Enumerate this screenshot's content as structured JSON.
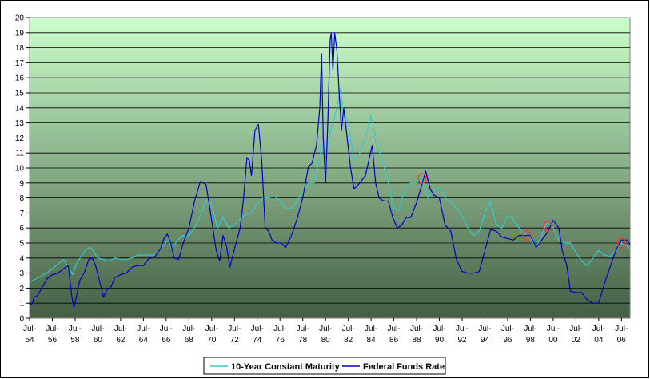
{
  "chart_data": {
    "type": "line",
    "title": "",
    "xlabel": "",
    "ylabel": "",
    "ylim": [
      0,
      20
    ],
    "yticks": [
      0,
      1,
      2,
      3,
      4,
      5,
      6,
      7,
      8,
      9,
      10,
      11,
      12,
      13,
      14,
      15,
      16,
      17,
      18,
      19,
      20
    ],
    "xlim": [
      1954.5,
      2007.25
    ],
    "xtick_top": [
      "Jul-",
      "Jul-",
      "Jul-",
      "Jul-",
      "Jul-",
      "Jul-",
      "Jul-",
      "Jul-",
      "Jul-",
      "Jul-",
      "Jul-",
      "Jul-",
      "Jul-",
      "Jul-",
      "Jul-",
      "Jul-",
      "Jul-",
      "Jul-",
      "Jul-",
      "Jul-",
      "Jul-",
      "Jul-",
      "Jul-",
      "Jul-",
      "Jul-",
      "Jul-",
      "Jul-"
    ],
    "xtick_bottom": [
      "54",
      "56",
      "58",
      "60",
      "62",
      "64",
      "66",
      "68",
      "70",
      "72",
      "74",
      "76",
      "78",
      "80",
      "82",
      "84",
      "86",
      "88",
      "90",
      "92",
      "94",
      "96",
      "98",
      "00",
      "02",
      "04",
      "06"
    ],
    "grid": true,
    "legend_position": "bottom",
    "colors": {
      "ten_year": "#33CCCC",
      "fed_funds": "#0000CC",
      "marker": "#FF3333"
    },
    "background_gradient": [
      "#CCFFCC",
      "#445E44"
    ],
    "series": [
      {
        "name": "10-Year Constant Maturity",
        "color": "#33CCCC",
        "x": [
          1954.5,
          1955.0,
          1955.5,
          1956.0,
          1956.5,
          1957.0,
          1957.5,
          1957.8,
          1958.3,
          1958.6,
          1959.0,
          1959.5,
          1959.9,
          1960.5,
          1961.0,
          1961.5,
          1962.0,
          1962.5,
          1963.0,
          1963.5,
          1964.0,
          1964.5,
          1965.0,
          1965.5,
          1966.0,
          1966.7,
          1967.0,
          1967.5,
          1968.0,
          1968.5,
          1969.0,
          1969.5,
          1970.0,
          1970.5,
          1971.0,
          1971.5,
          1972.0,
          1972.5,
          1973.0,
          1973.5,
          1974.0,
          1974.5,
          1975.0,
          1975.5,
          1976.0,
          1976.5,
          1977.0,
          1977.5,
          1978.0,
          1978.5,
          1979.0,
          1979.5,
          1980.0,
          1980.2,
          1980.5,
          1981.0,
          1981.5,
          1981.8,
          1982.0,
          1982.5,
          1983.0,
          1983.5,
          1984.0,
          1984.5,
          1985.0,
          1985.5,
          1986.0,
          1986.5,
          1987.0,
          1987.5,
          1988.0,
          1988.5,
          1989.0,
          1989.5,
          1990.0,
          1990.5,
          1991.0,
          1991.5,
          1992.0,
          1992.5,
          1993.0,
          1993.5,
          1994.0,
          1994.5,
          1995.0,
          1995.5,
          1996.0,
          1996.5,
          1997.0,
          1997.5,
          1998.0,
          1998.5,
          1999.0,
          1999.5,
          2000.0,
          2000.5,
          2001.0,
          2001.5,
          2002.0,
          2002.5,
          2003.0,
          2003.5,
          2004.0,
          2004.5,
          2005.0,
          2005.5,
          2006.0,
          2006.5,
          2007.0,
          2007.25
        ],
        "values": [
          2.4,
          2.6,
          2.8,
          3.0,
          3.3,
          3.6,
          3.9,
          3.5,
          2.9,
          3.6,
          4.1,
          4.6,
          4.7,
          4.0,
          3.9,
          3.8,
          4.0,
          3.9,
          3.9,
          4.0,
          4.2,
          4.2,
          4.2,
          4.2,
          4.6,
          5.2,
          4.6,
          5.2,
          5.5,
          5.5,
          6.0,
          6.8,
          7.8,
          7.6,
          6.0,
          6.7,
          6.0,
          6.2,
          6.6,
          6.9,
          7.0,
          7.6,
          8.0,
          8.0,
          8.1,
          7.8,
          7.3,
          7.3,
          7.8,
          8.4,
          9.0,
          9.0,
          10.8,
          11.5,
          10.8,
          12.6,
          14.0,
          15.3,
          14.0,
          13.0,
          10.5,
          11.0,
          12.0,
          13.5,
          11.5,
          10.5,
          9.0,
          7.3,
          7.2,
          8.8,
          9.0,
          9.0,
          9.2,
          8.0,
          8.5,
          8.7,
          8.0,
          7.8,
          7.3,
          6.8,
          6.0,
          5.5,
          5.8,
          7.0,
          7.8,
          6.2,
          6.0,
          6.8,
          6.6,
          6.0,
          5.6,
          5.3,
          4.7,
          5.5,
          6.5,
          6.0,
          5.2,
          5.0,
          5.0,
          4.4,
          3.8,
          3.5,
          4.0,
          4.5,
          4.2,
          4.1,
          4.5,
          5.0,
          4.8,
          4.6
        ]
      },
      {
        "name": "Federal Funds Rate",
        "color": "#0000CC",
        "x": [
          1954.5,
          1954.7,
          1954.9,
          1955.2,
          1955.5,
          1955.8,
          1956.0,
          1956.5,
          1957.0,
          1957.5,
          1957.9,
          1958.2,
          1958.4,
          1958.6,
          1958.9,
          1959.3,
          1959.7,
          1960.0,
          1960.3,
          1960.7,
          1961.0,
          1961.3,
          1961.6,
          1962.0,
          1962.5,
          1963.0,
          1963.5,
          1964.0,
          1964.5,
          1965.0,
          1965.5,
          1966.0,
          1966.3,
          1966.6,
          1966.9,
          1967.2,
          1967.6,
          1968.0,
          1968.5,
          1969.0,
          1969.5,
          1970.0,
          1970.3,
          1970.6,
          1970.9,
          1971.2,
          1971.5,
          1971.8,
          1972.1,
          1972.5,
          1973.0,
          1973.3,
          1973.6,
          1973.8,
          1974.0,
          1974.3,
          1974.6,
          1974.9,
          1975.2,
          1975.5,
          1975.8,
          1976.2,
          1976.6,
          1977.0,
          1977.5,
          1978.0,
          1978.5,
          1979.0,
          1979.3,
          1979.7,
          1980.0,
          1980.15,
          1980.3,
          1980.5,
          1980.7,
          1980.9,
          1981.0,
          1981.15,
          1981.3,
          1981.5,
          1981.7,
          1981.9,
          1982.1,
          1982.4,
          1982.7,
          1983.0,
          1983.5,
          1984.0,
          1984.3,
          1984.6,
          1984.9,
          1985.2,
          1985.6,
          1986.0,
          1986.4,
          1986.8,
          1987.2,
          1987.6,
          1988.0,
          1988.5,
          1989.0,
          1989.3,
          1989.7,
          1990.0,
          1990.5,
          1991.0,
          1991.5,
          1992.0,
          1992.5,
          1993.0,
          1993.5,
          1994.0,
          1994.5,
          1995.0,
          1995.5,
          1996.0,
          1996.5,
          1997.0,
          1997.5,
          1998.0,
          1998.5,
          1999.0,
          1999.5,
          2000.0,
          2000.5,
          2001.0,
          2001.3,
          2001.7,
          2002.0,
          2002.5,
          2003.0,
          2003.5,
          2004.0,
          2004.5,
          2005.0,
          2005.5,
          2006.0,
          2006.5,
          2007.0,
          2007.25
        ],
        "values": [
          1.0,
          0.9,
          1.4,
          1.5,
          1.9,
          2.3,
          2.6,
          2.9,
          3.0,
          3.3,
          3.5,
          1.5,
          0.7,
          1.4,
          2.5,
          3.0,
          3.9,
          4.0,
          3.5,
          2.3,
          1.4,
          1.9,
          2.0,
          2.7,
          2.9,
          3.0,
          3.4,
          3.5,
          3.5,
          4.0,
          4.1,
          4.6,
          5.3,
          5.6,
          5.0,
          4.0,
          3.9,
          5.0,
          6.0,
          7.8,
          9.1,
          8.9,
          7.5,
          6.0,
          4.5,
          3.8,
          5.5,
          4.8,
          3.4,
          4.6,
          6.0,
          8.0,
          10.7,
          10.5,
          9.5,
          12.5,
          12.9,
          10.5,
          6.0,
          5.8,
          5.2,
          5.0,
          5.0,
          4.7,
          5.5,
          6.6,
          8.0,
          10.1,
          10.3,
          11.5,
          14.0,
          17.6,
          12.0,
          9.0,
          13.0,
          18.5,
          19.0,
          16.5,
          19.0,
          17.8,
          15.0,
          12.5,
          14.0,
          12.0,
          10.0,
          8.6,
          9.0,
          9.5,
          10.5,
          11.5,
          9.0,
          8.0,
          7.8,
          7.8,
          6.7,
          6.0,
          6.2,
          6.7,
          6.7,
          7.7,
          9.0,
          9.8,
          8.6,
          8.2,
          8.0,
          6.2,
          5.8,
          3.9,
          3.1,
          3.0,
          3.0,
          3.1,
          4.5,
          5.9,
          5.8,
          5.4,
          5.3,
          5.2,
          5.5,
          5.5,
          5.5,
          4.7,
          5.2,
          5.7,
          6.5,
          6.0,
          4.5,
          3.5,
          1.8,
          1.7,
          1.7,
          1.2,
          1.0,
          1.0,
          2.3,
          3.4,
          4.5,
          5.2,
          5.2,
          4.9
        ]
      }
    ],
    "highlight_markers": [
      {
        "x": 1989.0,
        "y": 9.3
      },
      {
        "x": 1998.2,
        "y": 5.5
      },
      {
        "x": 2000.0,
        "y": 6.1
      },
      {
        "x": 2006.5,
        "y": 5.0
      }
    ]
  }
}
